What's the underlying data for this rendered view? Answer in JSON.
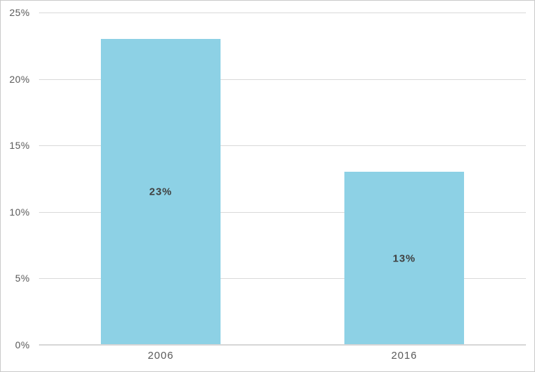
{
  "chart_data": {
    "type": "bar",
    "categories": [
      "2006",
      "2016"
    ],
    "values": [
      23,
      13
    ],
    "data_labels": [
      "23%",
      "13%"
    ],
    "yticks": [
      {
        "value": 0,
        "label": "0%"
      },
      {
        "value": 5,
        "label": "5%"
      },
      {
        "value": 10,
        "label": "10%"
      },
      {
        "value": 15,
        "label": "15%"
      },
      {
        "value": 20,
        "label": "20%"
      },
      {
        "value": 25,
        "label": "25%"
      }
    ],
    "ylim": [
      0,
      25
    ],
    "grid": true,
    "legend": false,
    "colors": {
      "bar_fill": "#8dd1e5",
      "gridline": "#d9d9d9",
      "baseline": "#d6d6d6",
      "tick_label": "#595959",
      "data_label": "#404040",
      "frame_border": "#c9c9c9",
      "background": "#ffffff"
    }
  }
}
